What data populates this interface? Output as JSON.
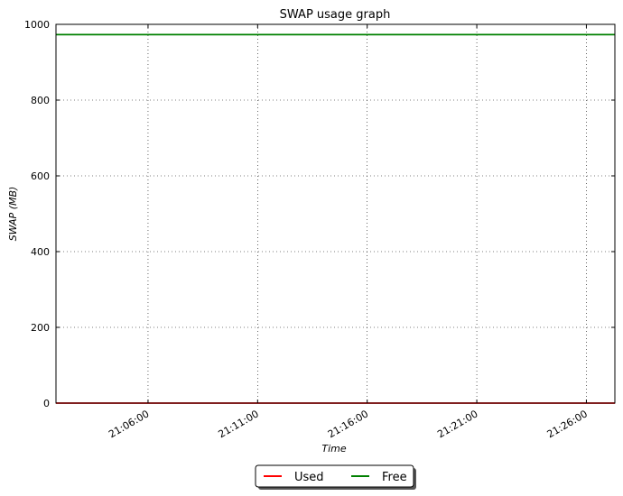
{
  "chart_data": {
    "type": "line",
    "title": "SWAP usage graph",
    "xlabel": "Time",
    "ylabel": "SWAP (MB)",
    "ylim": [
      0,
      1000
    ],
    "yticks": [
      "0",
      "200",
      "400",
      "600",
      "800",
      "1000"
    ],
    "xticks": [
      "21:06:00",
      "21:11:00",
      "21:16:00",
      "21:21:00",
      "21:26:00"
    ],
    "xlim": [
      "21:01:48",
      "21:27:18"
    ],
    "grid": true,
    "legend_position": "bottom-center",
    "series": [
      {
        "name": "Used",
        "color": "#ff0000",
        "values": [
          0,
          0
        ]
      },
      {
        "name": "Free",
        "color": "#008000",
        "values": [
          973,
          973
        ]
      }
    ],
    "x": [
      "21:01:48",
      "21:27:18"
    ]
  }
}
